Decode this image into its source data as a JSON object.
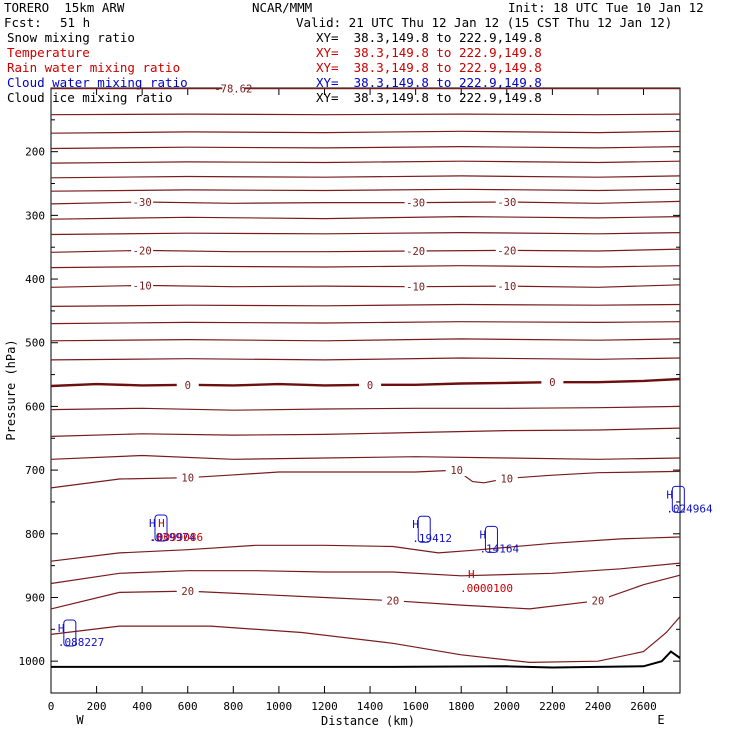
{
  "header": {
    "model": "TORERO  15km ARW",
    "org": "NCAR/MMM",
    "init": "Init: 18 UTC Tue 10 Jan 12",
    "fcst_label": "Fcst:",
    "fcst_value": "51 h",
    "valid": "Valid: 21 UTC Thu 12 Jan 12 (15 CST Thu 12 Jan 12)"
  },
  "fields": [
    {
      "name": "Snow mixing ratio",
      "xy": "XY=  38.3,149.8 to 222.9,149.8",
      "color": "#000000"
    },
    {
      "name": "Temperature",
      "xy": "XY=  38.3,149.8 to 222.9,149.8",
      "color": "#cc0000"
    },
    {
      "name": "Rain water mixing ratio",
      "xy": "XY=  38.3,149.8 to 222.9,149.8",
      "color": "#cc0000"
    },
    {
      "name": "Cloud water mixing ratio",
      "xy": "XY=  38.3,149.8 to 222.9,149.8",
      "color": "#0000cc"
    },
    {
      "name": "Cloud ice mixing ratio",
      "xy": "XY=  38.3,149.8 to 222.9,149.8",
      "color": "#000000"
    }
  ],
  "colors": {
    "temperature": "#7a1c1c",
    "zero_isotherm": "#6e0f0f",
    "cloud_water": "#1010c8",
    "rain_water": "#cc0000",
    "terrain": "#000000"
  },
  "chart_data": {
    "type": "line",
    "xlabel": "Distance (km)",
    "ylabel": "Pressure (hPa)",
    "xlim": [
      0,
      2760
    ],
    "ylim": [
      1050,
      100
    ],
    "y_scale": "linear, inverted",
    "x_ticks": [
      0,
      200,
      400,
      600,
      800,
      1000,
      1200,
      1400,
      1600,
      1800,
      2000,
      2200,
      2400,
      2600
    ],
    "y_ticks": [
      200,
      300,
      400,
      500,
      600,
      700,
      800,
      900,
      1000
    ],
    "x_end_labels": {
      "left": "W",
      "right": "E"
    },
    "isotherms": [
      {
        "label": "-78.62",
        "points": [
          [
            0,
            101
          ],
          [
            400,
            101
          ],
          [
            800,
            101
          ],
          [
            1200,
            101
          ],
          [
            1600,
            101
          ],
          [
            2000,
            101
          ],
          [
            2400,
            101
          ],
          [
            2760,
            101
          ]
        ]
      },
      {
        "label": "",
        "points": [
          [
            0,
            142
          ],
          [
            600,
            141
          ],
          [
            1200,
            142
          ],
          [
            1800,
            141
          ],
          [
            2400,
            142
          ],
          [
            2760,
            141
          ]
        ]
      },
      {
        "label": "",
        "points": [
          [
            0,
            171
          ],
          [
            600,
            169
          ],
          [
            1200,
            170
          ],
          [
            1800,
            168
          ],
          [
            2400,
            170
          ],
          [
            2760,
            168
          ]
        ]
      },
      {
        "label": "",
        "points": [
          [
            0,
            195
          ],
          [
            600,
            193
          ],
          [
            1200,
            194
          ],
          [
            1800,
            192
          ],
          [
            2400,
            194
          ],
          [
            2760,
            192
          ]
        ]
      },
      {
        "label": "",
        "points": [
          [
            0,
            218
          ],
          [
            600,
            216
          ],
          [
            1200,
            217
          ],
          [
            1800,
            215
          ],
          [
            2400,
            217
          ],
          [
            2760,
            215
          ]
        ]
      },
      {
        "label": "",
        "points": [
          [
            0,
            241
          ],
          [
            600,
            239
          ],
          [
            1200,
            240
          ],
          [
            1800,
            238
          ],
          [
            2400,
            240
          ],
          [
            2760,
            238
          ]
        ]
      },
      {
        "label": "",
        "points": [
          [
            0,
            262
          ],
          [
            600,
            260
          ],
          [
            1200,
            261
          ],
          [
            1800,
            259
          ],
          [
            2400,
            261
          ],
          [
            2760,
            259
          ]
        ]
      },
      {
        "label": "-30",
        "points": [
          [
            0,
            282
          ],
          [
            400,
            279
          ],
          [
            800,
            281
          ],
          [
            1200,
            280
          ],
          [
            1600,
            280
          ],
          [
            2000,
            279
          ],
          [
            2400,
            281
          ],
          [
            2760,
            278
          ]
        ]
      },
      {
        "label": "",
        "points": [
          [
            0,
            306
          ],
          [
            600,
            303
          ],
          [
            1200,
            305
          ],
          [
            1800,
            302
          ],
          [
            2400,
            304
          ],
          [
            2760,
            302
          ]
        ]
      },
      {
        "label": "",
        "points": [
          [
            0,
            330
          ],
          [
            600,
            328
          ],
          [
            1200,
            329
          ],
          [
            1800,
            327
          ],
          [
            2400,
            329
          ],
          [
            2760,
            327
          ]
        ]
      },
      {
        "label": "-20",
        "points": [
          [
            0,
            358
          ],
          [
            400,
            355
          ],
          [
            800,
            357
          ],
          [
            1200,
            357
          ],
          [
            1600,
            356
          ],
          [
            2000,
            355
          ],
          [
            2400,
            356
          ],
          [
            2760,
            353
          ]
        ]
      },
      {
        "label": "",
        "points": [
          [
            0,
            382
          ],
          [
            600,
            380
          ],
          [
            1200,
            381
          ],
          [
            1800,
            379
          ],
          [
            2400,
            381
          ],
          [
            2760,
            379
          ]
        ]
      },
      {
        "label": "-10",
        "points": [
          [
            0,
            413
          ],
          [
            400,
            410
          ],
          [
            800,
            412
          ],
          [
            1200,
            411
          ],
          [
            1600,
            412
          ],
          [
            2000,
            411
          ],
          [
            2400,
            413
          ],
          [
            2760,
            409
          ]
        ]
      },
      {
        "label": "",
        "points": [
          [
            0,
            443
          ],
          [
            600,
            441
          ],
          [
            1200,
            442
          ],
          [
            1800,
            440
          ],
          [
            2400,
            441
          ],
          [
            2760,
            440
          ]
        ]
      },
      {
        "label": "",
        "points": [
          [
            0,
            470
          ],
          [
            600,
            468
          ],
          [
            1200,
            469
          ],
          [
            1800,
            467
          ],
          [
            2400,
            468
          ],
          [
            2760,
            467
          ]
        ]
      },
      {
        "label": "",
        "points": [
          [
            0,
            497
          ],
          [
            600,
            495
          ],
          [
            1200,
            497
          ],
          [
            1800,
            494
          ],
          [
            2400,
            496
          ],
          [
            2760,
            494
          ]
        ]
      },
      {
        "label": "",
        "points": [
          [
            0,
            527
          ],
          [
            600,
            525
          ],
          [
            1200,
            527
          ],
          [
            1800,
            524
          ],
          [
            2400,
            526
          ],
          [
            2760,
            524
          ]
        ]
      },
      {
        "label": "0",
        "points": [
          [
            0,
            568
          ],
          [
            200,
            565
          ],
          [
            400,
            567
          ],
          [
            600,
            566
          ],
          [
            800,
            567
          ],
          [
            1000,
            565
          ],
          [
            1200,
            567
          ],
          [
            1400,
            566
          ],
          [
            1600,
            566
          ],
          [
            1800,
            564
          ],
          [
            2000,
            563
          ],
          [
            2200,
            562
          ],
          [
            2400,
            562
          ],
          [
            2600,
            560
          ],
          [
            2760,
            557
          ]
        ]
      },
      {
        "label": "",
        "points": [
          [
            0,
            605
          ],
          [
            400,
            603
          ],
          [
            800,
            606
          ],
          [
            1200,
            604
          ],
          [
            1600,
            603
          ],
          [
            2000,
            603
          ],
          [
            2400,
            602
          ],
          [
            2760,
            600
          ]
        ]
      },
      {
        "label": "",
        "points": [
          [
            0,
            647
          ],
          [
            400,
            643
          ],
          [
            800,
            645
          ],
          [
            1200,
            644
          ],
          [
            1600,
            641
          ],
          [
            2000,
            638
          ],
          [
            2400,
            637
          ],
          [
            2760,
            634
          ]
        ]
      },
      {
        "label": "",
        "points": [
          [
            0,
            683
          ],
          [
            400,
            677
          ],
          [
            800,
            683
          ],
          [
            1200,
            681
          ],
          [
            1600,
            679
          ],
          [
            2000,
            681
          ],
          [
            2400,
            683
          ],
          [
            2760,
            681
          ]
        ]
      },
      {
        "label": "10",
        "points": [
          [
            0,
            728
          ],
          [
            300,
            714
          ],
          [
            600,
            712
          ],
          [
            780,
            708
          ],
          [
            1000,
            703
          ],
          [
            1300,
            703
          ],
          [
            1600,
            703
          ],
          [
            1780,
            700
          ],
          [
            1850,
            718
          ],
          [
            1900,
            720
          ],
          [
            2000,
            713
          ],
          [
            2200,
            708
          ],
          [
            2400,
            704
          ],
          [
            2760,
            702
          ]
        ]
      },
      {
        "label": "",
        "points": [
          [
            0,
            843
          ],
          [
            300,
            830
          ],
          [
            600,
            825
          ],
          [
            900,
            818
          ],
          [
            1200,
            818
          ],
          [
            1500,
            820
          ],
          [
            1700,
            830
          ],
          [
            1850,
            826
          ],
          [
            2200,
            815
          ],
          [
            2500,
            808
          ],
          [
            2760,
            805
          ]
        ]
      },
      {
        "label": "",
        "points": [
          [
            0,
            878
          ],
          [
            300,
            862
          ],
          [
            600,
            858
          ],
          [
            900,
            858
          ],
          [
            1200,
            860
          ],
          [
            1500,
            860
          ],
          [
            1800,
            866
          ],
          [
            2200,
            862
          ],
          [
            2500,
            855
          ],
          [
            2760,
            846
          ]
        ]
      },
      {
        "label": "20",
        "points": [
          [
            0,
            918
          ],
          [
            300,
            892
          ],
          [
            600,
            890
          ],
          [
            900,
            895
          ],
          [
            1200,
            900
          ],
          [
            1500,
            905
          ],
          [
            1800,
            912
          ],
          [
            2100,
            918
          ],
          [
            2400,
            905
          ],
          [
            2600,
            880
          ],
          [
            2760,
            865
          ]
        ]
      },
      {
        "label": "",
        "points": [
          [
            0,
            958
          ],
          [
            300,
            945
          ],
          [
            700,
            945
          ],
          [
            1100,
            955
          ],
          [
            1500,
            972
          ],
          [
            1800,
            990
          ],
          [
            2100,
            1002
          ],
          [
            2400,
            1000
          ],
          [
            2600,
            985
          ],
          [
            2700,
            955
          ],
          [
            2760,
            930
          ]
        ]
      }
    ],
    "cloud_water_maxima": [
      {
        "label": ".039974",
        "x": 430,
        "p": 805
      },
      {
        "label": ".19412",
        "x": 1585,
        "p": 807
      },
      {
        "label": ".14164",
        "x": 1880,
        "p": 823
      },
      {
        "label": ".024964",
        "x": 2700,
        "p": 760
      },
      {
        "label": ".088227",
        "x": 30,
        "p": 970
      }
    ],
    "rain_water_maxima": [
      {
        "label": ".0099086",
        "x": 470,
        "p": 805
      },
      {
        "label": ".0000100",
        "x": 1830,
        "p": 885
      }
    ],
    "terrain": [
      [
        0,
        1009
      ],
      [
        1500,
        1009
      ],
      [
        2000,
        1008
      ],
      [
        2200,
        1010
      ],
      [
        2400,
        1009
      ],
      [
        2600,
        1008
      ],
      [
        2680,
        1000
      ],
      [
        2720,
        985
      ],
      [
        2760,
        995
      ]
    ]
  }
}
